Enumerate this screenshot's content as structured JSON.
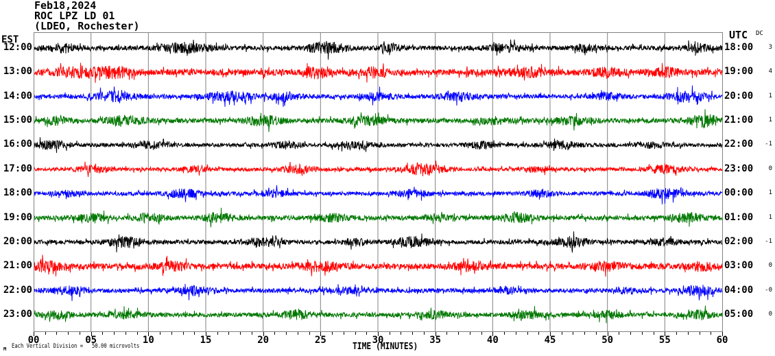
{
  "header": {
    "date": "Feb18,2024",
    "station": "ROC LPZ LD 01",
    "location": "(LDEO, Rochester)"
  },
  "axes": {
    "left_label": "EST",
    "right_label": "UTC",
    "dc_label": "DC",
    "x_title": "TIME (MINUTES)",
    "x_ticks": [
      "00",
      "05",
      "10",
      "15",
      "20",
      "25",
      "30",
      "35",
      "40",
      "45",
      "50",
      "55",
      "60"
    ]
  },
  "footer": {
    "scale_note": "Each Vertical Division =   50.00 microvolts",
    "watermark": "M"
  },
  "chart_data": {
    "type": "line",
    "subtype": "helicorder-seismogram",
    "title": "ROC LPZ LD 01 (LDEO, Rochester) Feb18,2024",
    "xlabel": "TIME (MINUTES)",
    "x_range_minutes": [
      0,
      60
    ],
    "x_major_tick_minutes": 5,
    "x_minor_tick_minutes": 1,
    "vertical_division_note": "Each Vertical Division = 50.00 microvolts",
    "grid": {
      "vertical_every_minutes": 5,
      "color": "#808080",
      "horizontal": false
    },
    "palette": {
      "black": "#000000",
      "red": "#ff0000",
      "blue": "#0000ff",
      "green": "#007700"
    },
    "rows": [
      {
        "est": "12:00",
        "utc": "18:00",
        "dc": "3",
        "color": "black",
        "synth": {
          "seed": 101,
          "base_amp": 3.2,
          "bursts": [
            {
              "m": 2.5,
              "w": 1.0,
              "a": 5
            },
            {
              "m": 13,
              "w": 1.5,
              "a": 6
            },
            {
              "m": 25.5,
              "w": 1.2,
              "a": 7
            },
            {
              "m": 31,
              "w": 0.8,
              "a": 4
            },
            {
              "m": 41,
              "w": 1.0,
              "a": 5
            },
            {
              "m": 48,
              "w": 0.7,
              "a": 4
            },
            {
              "m": 58,
              "w": 0.8,
              "a": 5
            }
          ]
        }
      },
      {
        "est": "13:00",
        "utc": "19:00",
        "dc": "4",
        "color": "red",
        "synth": {
          "seed": 202,
          "base_amp": 4.5,
          "bursts": [
            {
              "m": 4,
              "w": 1.5,
              "a": 5
            },
            {
              "m": 7,
              "w": 1.0,
              "a": 5
            },
            {
              "m": 24.5,
              "w": 0.8,
              "a": 6
            },
            {
              "m": 30,
              "w": 1.0,
              "a": 5
            },
            {
              "m": 43,
              "w": 1.2,
              "a": 4
            },
            {
              "m": 50,
              "w": 1.0,
              "a": 4
            },
            {
              "m": 55,
              "w": 0.8,
              "a": 4
            }
          ]
        }
      },
      {
        "est": "14:00",
        "utc": "20:00",
        "dc": "1",
        "color": "blue",
        "synth": {
          "seed": 303,
          "base_amp": 3.0,
          "bursts": [
            {
              "m": 7,
              "w": 1.2,
              "a": 6
            },
            {
              "m": 17,
              "w": 1.5,
              "a": 6
            },
            {
              "m": 22,
              "w": 0.8,
              "a": 5
            },
            {
              "m": 30,
              "w": 1.0,
              "a": 5
            },
            {
              "m": 37,
              "w": 1.0,
              "a": 5
            },
            {
              "m": 50,
              "w": 0.8,
              "a": 4
            },
            {
              "m": 57,
              "w": 1.2,
              "a": 6
            }
          ]
        }
      },
      {
        "est": "15:00",
        "utc": "21:00",
        "dc": "1",
        "color": "green",
        "synth": {
          "seed": 404,
          "base_amp": 3.4,
          "bursts": [
            {
              "m": 2,
              "w": 0.8,
              "a": 4
            },
            {
              "m": 8,
              "w": 1.2,
              "a": 5
            },
            {
              "m": 20,
              "w": 1.0,
              "a": 6
            },
            {
              "m": 29,
              "w": 1.2,
              "a": 5
            },
            {
              "m": 40,
              "w": 0.8,
              "a": 4
            },
            {
              "m": 47,
              "w": 1.0,
              "a": 5
            },
            {
              "m": 58.5,
              "w": 1.0,
              "a": 7
            }
          ]
        }
      },
      {
        "est": "16:00",
        "utc": "22:00",
        "dc": "-1",
        "color": "black",
        "synth": {
          "seed": 505,
          "base_amp": 2.8,
          "bursts": [
            {
              "m": 1.5,
              "w": 1.0,
              "a": 5
            },
            {
              "m": 10,
              "w": 1.0,
              "a": 4
            },
            {
              "m": 22,
              "w": 0.8,
              "a": 4
            },
            {
              "m": 28,
              "w": 1.0,
              "a": 5
            },
            {
              "m": 39,
              "w": 0.8,
              "a": 4
            },
            {
              "m": 46,
              "w": 1.0,
              "a": 4
            },
            {
              "m": 54,
              "w": 0.8,
              "a": 3
            }
          ]
        }
      },
      {
        "est": "17:00",
        "utc": "23:00",
        "dc": "0",
        "color": "red",
        "synth": {
          "seed": 606,
          "base_amp": 2.6,
          "bursts": [
            {
              "m": 5,
              "w": 1.0,
              "a": 4
            },
            {
              "m": 14,
              "w": 0.8,
              "a": 3
            },
            {
              "m": 23,
              "w": 1.0,
              "a": 5
            },
            {
              "m": 34,
              "w": 1.2,
              "a": 7
            },
            {
              "m": 44,
              "w": 0.8,
              "a": 3
            },
            {
              "m": 55,
              "w": 1.0,
              "a": 6
            }
          ]
        }
      },
      {
        "est": "18:00",
        "utc": "00:00",
        "dc": "1",
        "color": "blue",
        "synth": {
          "seed": 707,
          "base_amp": 2.8,
          "bursts": [
            {
              "m": 3,
              "w": 0.8,
              "a": 3
            },
            {
              "m": 13,
              "w": 1.0,
              "a": 5
            },
            {
              "m": 21,
              "w": 0.8,
              "a": 4
            },
            {
              "m": 33,
              "w": 1.0,
              "a": 4
            },
            {
              "m": 44,
              "w": 0.8,
              "a": 4
            },
            {
              "m": 55,
              "w": 1.0,
              "a": 6
            }
          ]
        }
      },
      {
        "est": "19:00",
        "utc": "01:00",
        "dc": "1",
        "color": "green",
        "synth": {
          "seed": 808,
          "base_amp": 3.2,
          "bursts": [
            {
              "m": 5,
              "w": 1.0,
              "a": 4
            },
            {
              "m": 10,
              "w": 0.8,
              "a": 5
            },
            {
              "m": 16,
              "w": 1.0,
              "a": 5
            },
            {
              "m": 26,
              "w": 1.0,
              "a": 4
            },
            {
              "m": 35,
              "w": 0.8,
              "a": 4
            },
            {
              "m": 42,
              "w": 1.0,
              "a": 5
            },
            {
              "m": 57,
              "w": 1.0,
              "a": 5
            }
          ]
        }
      },
      {
        "est": "20:00",
        "utc": "02:00",
        "dc": "-1",
        "color": "black",
        "synth": {
          "seed": 909,
          "base_amp": 3.0,
          "bursts": [
            {
              "m": 8,
              "w": 1.2,
              "a": 6
            },
            {
              "m": 20,
              "w": 1.0,
              "a": 5
            },
            {
              "m": 28,
              "w": 0.8,
              "a": 4
            },
            {
              "m": 33,
              "w": 1.0,
              "a": 6
            },
            {
              "m": 47,
              "w": 1.0,
              "a": 6
            },
            {
              "m": 55,
              "w": 0.8,
              "a": 4
            }
          ]
        }
      },
      {
        "est": "21:00",
        "utc": "03:00",
        "dc": "0",
        "color": "red",
        "synth": {
          "seed": 1010,
          "base_amp": 4.2,
          "bursts": [
            {
              "m": 1,
              "w": 1.0,
              "a": 5
            },
            {
              "m": 12,
              "w": 1.0,
              "a": 4
            },
            {
              "m": 25,
              "w": 1.2,
              "a": 5
            },
            {
              "m": 38,
              "w": 1.0,
              "a": 4
            },
            {
              "m": 50,
              "w": 1.0,
              "a": 4
            },
            {
              "m": 58,
              "w": 0.8,
              "a": 4
            }
          ]
        }
      },
      {
        "est": "22:00",
        "utc": "04:00",
        "dc": "-0",
        "color": "blue",
        "synth": {
          "seed": 1111,
          "base_amp": 3.0,
          "bursts": [
            {
              "m": 3,
              "w": 1.0,
              "a": 5
            },
            {
              "m": 14,
              "w": 1.0,
              "a": 5
            },
            {
              "m": 27,
              "w": 1.0,
              "a": 4
            },
            {
              "m": 41,
              "w": 0.8,
              "a": 4
            },
            {
              "m": 52,
              "w": 0.8,
              "a": 3
            },
            {
              "m": 58,
              "w": 1.0,
              "a": 6
            }
          ]
        }
      },
      {
        "est": "23:00",
        "utc": "05:00",
        "dc": "0",
        "color": "green",
        "synth": {
          "seed": 1212,
          "base_amp": 3.2,
          "bursts": [
            {
              "m": 2,
              "w": 0.8,
              "a": 4
            },
            {
              "m": 8,
              "w": 1.0,
              "a": 4
            },
            {
              "m": 23,
              "w": 1.0,
              "a": 5
            },
            {
              "m": 35,
              "w": 0.8,
              "a": 4
            },
            {
              "m": 43,
              "w": 1.0,
              "a": 4
            },
            {
              "m": 50,
              "w": 0.8,
              "a": 4
            },
            {
              "m": 58,
              "w": 0.8,
              "a": 5
            }
          ]
        }
      }
    ]
  }
}
